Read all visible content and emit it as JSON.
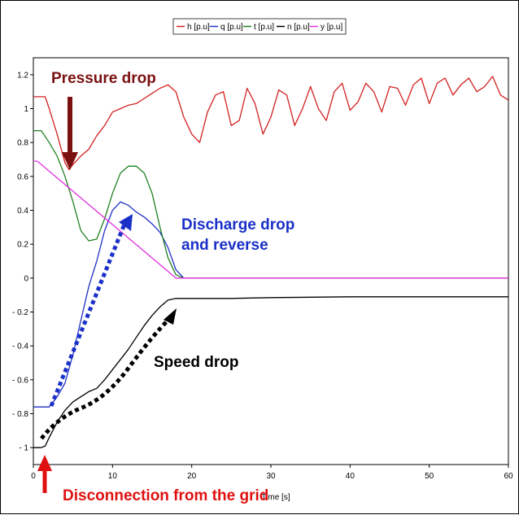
{
  "chart_data": {
    "type": "line",
    "xlabel": "Time [s]",
    "xlim": [
      0,
      60
    ],
    "ylim": [
      -1.1,
      1.3
    ],
    "x_ticks": [
      0,
      10,
      20,
      30,
      40,
      50,
      60
    ],
    "y_ticks": [
      1.2,
      1,
      0.8,
      0.6,
      0.4,
      0.2,
      0,
      -0.2,
      -0.4,
      -0.6,
      -0.8,
      -1
    ],
    "y_tick_labels": [
      "1.2",
      "1",
      "0.8",
      "0.6",
      "0.4",
      "0.2",
      "0",
      "- 0.2",
      "- 0.4",
      "- 0.6",
      "- 0.8",
      "- 1"
    ],
    "legend_position": "top-center",
    "series": [
      {
        "name": "h [p.u]",
        "color": "#d42020",
        "x": [
          0,
          1,
          1.5,
          2,
          3,
          4,
          4.5,
          5,
          6,
          7,
          8,
          9,
          10,
          11,
          12,
          13,
          14,
          15,
          16,
          17,
          18,
          19,
          20,
          21,
          22,
          23,
          24,
          25,
          26,
          27,
          28,
          29,
          30,
          31,
          32,
          33,
          34,
          35,
          36,
          37,
          38,
          39,
          40,
          41,
          42,
          43,
          44,
          45,
          46,
          47,
          48,
          49,
          50,
          51,
          52,
          53,
          54,
          55,
          56,
          57,
          58,
          59,
          60
        ],
        "y": [
          1.07,
          1.07,
          1.07,
          1.0,
          0.85,
          0.68,
          0.64,
          0.67,
          0.72,
          0.76,
          0.84,
          0.9,
          0.98,
          1.0,
          1.02,
          1.03,
          1.06,
          1.09,
          1.12,
          1.14,
          1.1,
          0.95,
          0.85,
          0.8,
          0.98,
          1.08,
          1.1,
          0.9,
          0.93,
          1.12,
          1.03,
          0.85,
          0.95,
          1.11,
          1.08,
          0.9,
          1.0,
          1.13,
          1.0,
          0.93,
          1.1,
          1.15,
          0.99,
          1.04,
          1.15,
          1.1,
          0.98,
          1.13,
          1.12,
          1.02,
          1.14,
          1.18,
          1.03,
          1.15,
          1.18,
          1.08,
          1.14,
          1.18,
          1.1,
          1.13,
          1.19,
          1.08,
          1.05
        ]
      },
      {
        "name": "q [p.u]",
        "color": "#2030c8",
        "x": [
          0,
          1,
          2,
          3,
          4,
          5,
          6,
          7,
          8,
          9,
          10,
          11,
          12,
          13,
          14,
          15,
          16,
          17,
          18,
          19,
          20,
          30,
          40,
          50,
          60
        ],
        "y": [
          -0.76,
          -0.76,
          -0.76,
          -0.7,
          -0.62,
          -0.45,
          -0.25,
          -0.05,
          0.1,
          0.28,
          0.4,
          0.45,
          0.43,
          0.39,
          0.36,
          0.32,
          0.27,
          0.18,
          0.05,
          0.0,
          0.0,
          0.0,
          0.0,
          0.0,
          0.0
        ]
      },
      {
        "name": "t [p.u]",
        "color": "#208020",
        "x": [
          0,
          1,
          2,
          3,
          4,
          5,
          6,
          7,
          8,
          9,
          10,
          11,
          12,
          13,
          14,
          15,
          16,
          17,
          18,
          19,
          20,
          30,
          40,
          50,
          60
        ],
        "y": [
          0.87,
          0.87,
          0.8,
          0.72,
          0.6,
          0.45,
          0.28,
          0.22,
          0.23,
          0.35,
          0.5,
          0.62,
          0.66,
          0.66,
          0.62,
          0.5,
          0.3,
          0.12,
          0.02,
          0.0,
          0.0,
          0.0,
          0.0,
          0.0,
          0.0
        ]
      },
      {
        "name": "n [p.u]",
        "color": "#000000",
        "x": [
          0,
          1,
          1.5,
          2,
          3,
          4,
          5,
          6,
          7,
          8,
          9,
          10,
          11,
          12,
          13,
          14,
          15,
          16,
          17,
          18,
          19,
          20,
          25,
          30,
          40,
          50,
          60
        ],
        "y": [
          -1.0,
          -1.0,
          -0.99,
          -0.94,
          -0.85,
          -0.78,
          -0.73,
          -0.7,
          -0.67,
          -0.65,
          -0.6,
          -0.54,
          -0.48,
          -0.42,
          -0.35,
          -0.28,
          -0.22,
          -0.17,
          -0.13,
          -0.12,
          -0.12,
          -0.12,
          -0.12,
          -0.115,
          -0.11,
          -0.11,
          -0.11
        ]
      },
      {
        "name": "y [p.u]",
        "color": "#e030e0",
        "x": [
          0,
          0.5,
          18,
          19,
          20,
          30,
          40,
          50,
          60
        ],
        "y": [
          0.69,
          0.69,
          0.0,
          0.0,
          0.0,
          0.0,
          0.0,
          0.0,
          0.0
        ]
      }
    ],
    "annotations": [
      {
        "text": "Pressure drop",
        "color": "#7b1010"
      },
      {
        "text": "Discharge drop",
        "color": "#1a30c8"
      },
      {
        "text": "and reverse",
        "color": "#1a30c8"
      },
      {
        "text": "Speed drop",
        "color": "#000000"
      },
      {
        "text": "Disconnection from the grid",
        "color": "#e01010"
      }
    ]
  }
}
